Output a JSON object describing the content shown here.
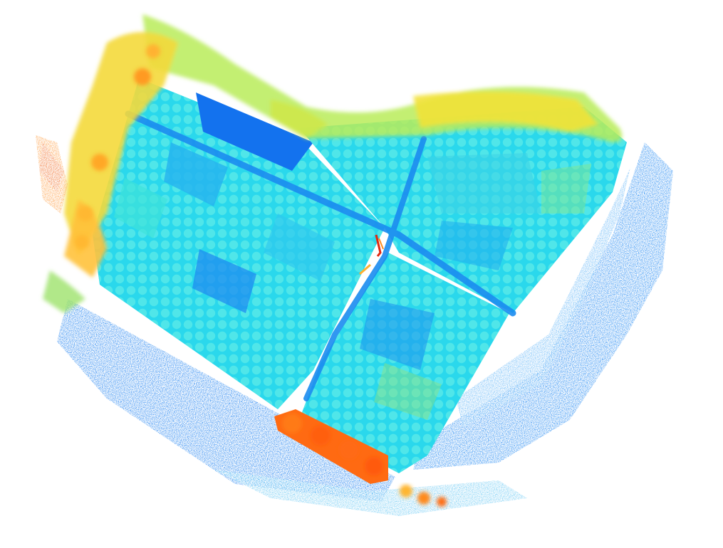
{
  "scene": {
    "background": "#ffffff",
    "colormap": [
      "#0a50e6",
      "#1a8cf5",
      "#18c8f0",
      "#2ee6e0",
      "#5ae0c0",
      "#a8e86a",
      "#e8ec40",
      "#ffc83c",
      "#ff8a1e",
      "#ff5a10",
      "#e02810"
    ],
    "ground_color": "#1a7ef0",
    "canopy_color": "#2ad8ec",
    "tall_vegetation_color": "#ff7a14"
  }
}
